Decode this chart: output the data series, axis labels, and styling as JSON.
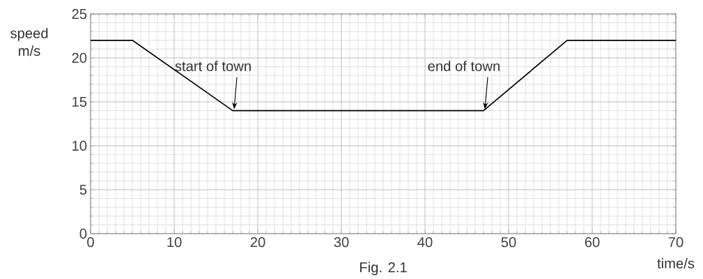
{
  "chart_data": {
    "type": "line",
    "xlabel": "time/s",
    "ylabel": "speed m/s",
    "x": [
      0,
      5,
      17,
      47,
      57,
      70
    ],
    "series": [
      {
        "color": "#000000",
        "values": [
          22,
          22,
          14,
          14,
          22,
          22
        ]
      }
    ],
    "xlim": [
      0,
      70
    ],
    "ylim": [
      0,
      25
    ],
    "xticks": [
      0,
      10,
      20,
      30,
      40,
      50,
      60,
      70
    ],
    "yticks": [
      0,
      5,
      10,
      15,
      20,
      25
    ],
    "grid": true,
    "marker": "none",
    "line_style": "solid",
    "annotations": [
      {
        "text": "start of town",
        "x": 17,
        "y": 14
      },
      {
        "text": "end of town",
        "x": 47,
        "y": 14
      },
      "Fig. 2.1"
    ]
  }
}
